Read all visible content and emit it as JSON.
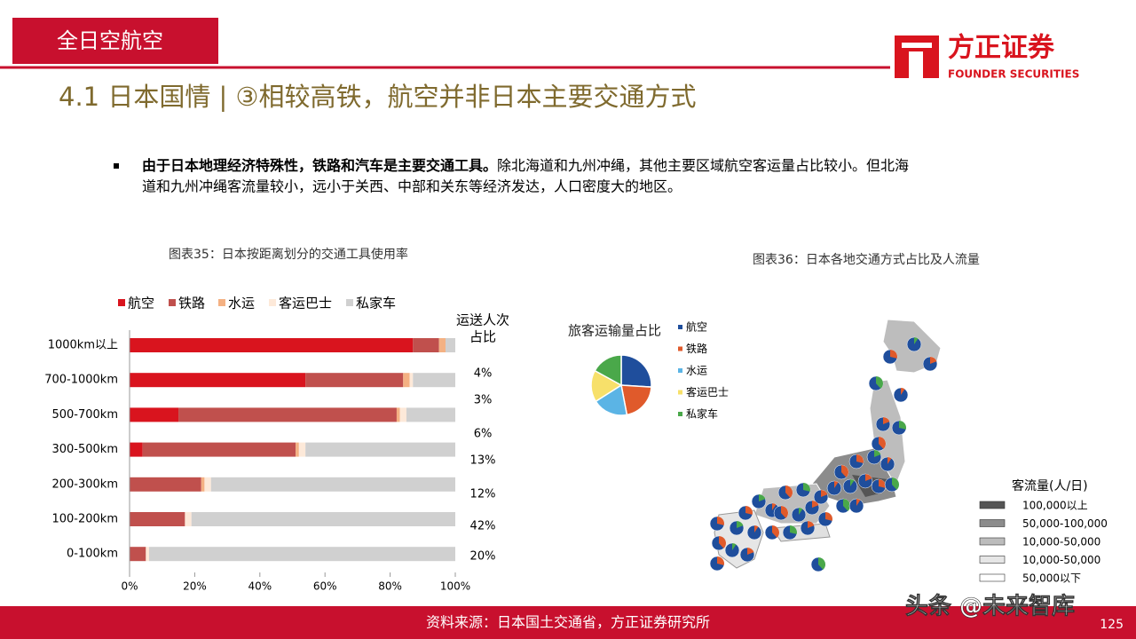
{
  "header": {
    "section": "全日空航空",
    "logo_cn": "方正证券",
    "logo_en": "FOUNDER SECURITIES",
    "title": "4.1 日本国情 | ③相较高铁，航空并非日本主要交通方式"
  },
  "bullet": {
    "bold": "由于日本地理经济特殊性，铁路和汽车是主要交通工具。",
    "line1": "除北海道和九州冲绳，其他主要区域航空客运量占比较小。但北海",
    "line2": "道和九州冲绳客流量较小，远小于关西、中部和关东等经济发达，人口密度大的地区。"
  },
  "chart_data": [
    {
      "type": "bar",
      "orientation": "horizontal",
      "stacked": true,
      "title": "图表35：日本按距离划分的交通工具使用率",
      "categories": [
        "1000km以上",
        "700-1000km",
        "500-700km",
        "300-500km",
        "200-300km",
        "100-200km",
        "0-100km"
      ],
      "series": [
        {
          "name": "航空",
          "color": "#d9141e",
          "values": [
            87,
            54,
            15,
            4,
            0,
            0,
            0
          ]
        },
        {
          "name": "铁路",
          "color": "#c0504d",
          "values": [
            8,
            30,
            67,
            47,
            22,
            17,
            5
          ]
        },
        {
          "name": "水运",
          "color": "#f4b183",
          "values": [
            2,
            2,
            1,
            1,
            1,
            0,
            0
          ]
        },
        {
          "name": "客运巴士",
          "color": "#fde9d9",
          "values": [
            0,
            1,
            2,
            2,
            2,
            2,
            1
          ]
        },
        {
          "name": "私家车",
          "color": "#d0d0d0",
          "values": [
            3,
            13,
            15,
            46,
            75,
            81,
            94
          ]
        }
      ],
      "xlim": [
        0,
        100
      ],
      "xticks": [
        {
          "value": 0,
          "label": "0%"
        },
        {
          "value": 20,
          "label": "20%"
        },
        {
          "value": 40,
          "label": "40%"
        },
        {
          "value": 60,
          "label": "60%"
        },
        {
          "value": 80,
          "label": "80%"
        },
        {
          "value": 100,
          "label": "100%"
        }
      ],
      "passenger_share": {
        "title": [
          "运送人次",
          "占比"
        ],
        "values": [
          4,
          3,
          6,
          13,
          12,
          42,
          20
        ],
        "value_labels": [
          "4%",
          "3%",
          "6%",
          "13%",
          "12%",
          "42%",
          "20%"
        ]
      }
    },
    {
      "type": "pie",
      "title": "旅客运输量占比",
      "chart_title": "图表36：日本各地交通方式占比及人流量",
      "categories": [
        "航空",
        "铁路",
        "水运",
        "客运巴士",
        "私家车"
      ],
      "values": [
        26,
        21,
        19,
        17,
        17
      ],
      "colors": [
        "#1f4e9c",
        "#e05a2b",
        "#5bb4e5",
        "#f7e06a",
        "#4aa84a"
      ]
    }
  ],
  "map_legend": {
    "title": "客流量(人/日)",
    "items": [
      "100,000以上",
      "50,000-100,000",
      "10,000-50,000",
      "10,000-50,000",
      "50,000以下"
    ],
    "colors": [
      "#555555",
      "#8c8c8c",
      "#bcbcbc",
      "#e6e6e6",
      "#ffffff"
    ]
  },
  "footer": {
    "source": "资料来源：日本国土交通省，方正证券研究所",
    "page": "125",
    "watermark": "头条 @未来智库"
  }
}
